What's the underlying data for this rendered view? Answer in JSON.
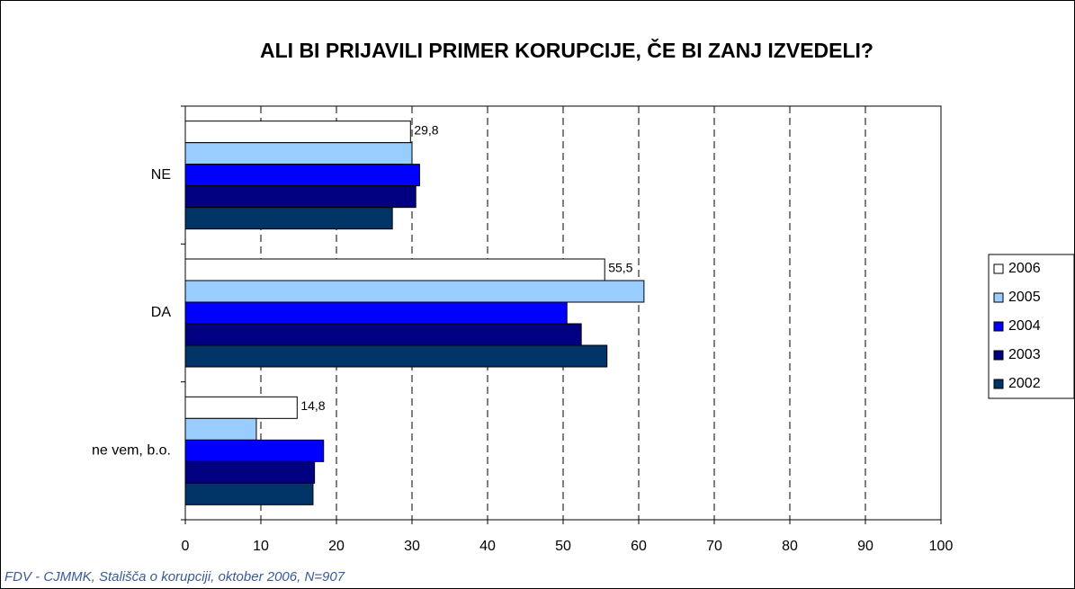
{
  "chart_data": {
    "type": "barh",
    "title": "ALI BI PRIJAVILI PRIMER KORUPCIJE, ČE BI ZANJ IZVEDELI?",
    "footnote": "FDV - CJMMK, Stališča o korupciji, oktober 2006, N=907",
    "categories": [
      "NE",
      "DA",
      "ne vem, b.o."
    ],
    "series": [
      {
        "name": "2006",
        "color": "#ffffff",
        "values": [
          29.8,
          55.5,
          14.8
        ],
        "value_labels": [
          "29,8",
          "55,5",
          "14,8"
        ]
      },
      {
        "name": "2005",
        "color": "#99ccff",
        "values": [
          30.0,
          60.7,
          9.4
        ]
      },
      {
        "name": "2004",
        "color": "#0000ff",
        "values": [
          31.0,
          50.5,
          18.3
        ]
      },
      {
        "name": "2003",
        "color": "#000080",
        "values": [
          30.5,
          52.4,
          17.1
        ]
      },
      {
        "name": "2002",
        "color": "#003366",
        "values": [
          27.4,
          55.8,
          16.9
        ]
      }
    ],
    "xlim": [
      0,
      100
    ],
    "xticks": [
      0,
      10,
      20,
      30,
      40,
      50,
      60,
      70,
      80,
      90,
      100
    ],
    "grid": true,
    "legend": "right"
  }
}
